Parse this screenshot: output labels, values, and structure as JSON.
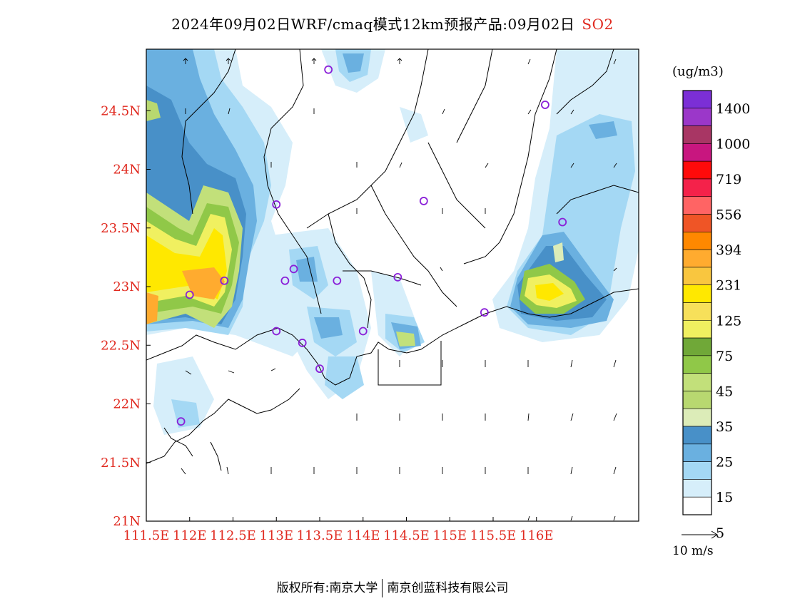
{
  "title": "2024年09月02日WRF/cmaq模式12km预报产品:09月02日",
  "species": "SO2",
  "units": "(ug/m3)",
  "wind_scale": "10 m/s",
  "footer": {
    "left": "版权所有:南京大学",
    "right": "南京创蓝科技有限公司"
  },
  "axes": {
    "lat_labels": [
      "24.5N",
      "24N",
      "23.5N",
      "23N",
      "22.5N",
      "22N",
      "21.5N",
      "21N"
    ],
    "lon_labels": [
      "111.5E",
      "112E",
      "112.5E",
      "113E",
      "113.5E",
      "114E",
      "114.5E",
      "115E",
      "115.5E",
      "116E"
    ],
    "label_color": "#e0281e"
  },
  "legend": {
    "labels": [
      "1400",
      "1000",
      "719",
      "556",
      "394",
      "231",
      "125",
      "75",
      "45",
      "35",
      "25",
      "15",
      "5"
    ],
    "colors": [
      "#7b2fd6",
      "#9b37c9",
      "#a83664",
      "#c8167f",
      "#ff0a0a",
      "#f4224a",
      "#ff6464",
      "#ef5526",
      "#ff8800",
      "#ffab2f",
      "#f9c63f",
      "#ffe800",
      "#f7e05a",
      "#f0f060",
      "#70a838",
      "#90c848",
      "#c2e07a",
      "#b8d870",
      "#dcecb8",
      "#4890c8",
      "#6ab0e0",
      "#a4d8f4",
      "#d6eefa",
      "#ffffff"
    ]
  },
  "stations": [
    {
      "lon": 113.6,
      "lat": 24.85
    },
    {
      "lon": 116.1,
      "lat": 24.55
    },
    {
      "lon": 113.0,
      "lat": 23.7
    },
    {
      "lon": 114.7,
      "lat": 23.73
    },
    {
      "lon": 116.3,
      "lat": 23.55
    },
    {
      "lon": 113.2,
      "lat": 23.15
    },
    {
      "lon": 113.1,
      "lat": 23.05
    },
    {
      "lon": 113.7,
      "lat": 23.05
    },
    {
      "lon": 114.4,
      "lat": 23.08
    },
    {
      "lon": 112.4,
      "lat": 23.05
    },
    {
      "lon": 112.0,
      "lat": 22.93
    },
    {
      "lon": 115.4,
      "lat": 22.78
    },
    {
      "lon": 113.0,
      "lat": 22.62
    },
    {
      "lon": 114.0,
      "lat": 22.62
    },
    {
      "lon": 113.3,
      "lat": 22.52
    },
    {
      "lon": 113.5,
      "lat": 22.3
    },
    {
      "lon": 111.9,
      "lat": 21.85
    }
  ]
}
